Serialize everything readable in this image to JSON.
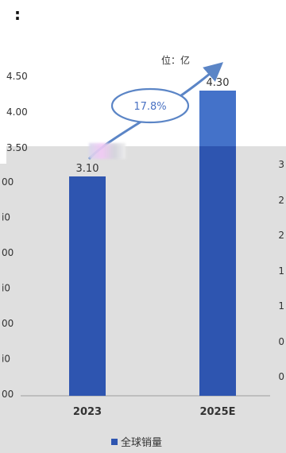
{
  "top_glyph": ":",
  "unit_label": "位：亿",
  "growth_label": "17.8%",
  "blurred_label": "",
  "colors": {
    "top_panel_bar": "#4472c9",
    "bottom_panel_bar": "#2e55b0",
    "arrow": "#5b85c6",
    "ellipse_stroke": "#5b85c6",
    "grey_panel": "#dfdfdf"
  },
  "chart_data": {
    "type": "bar",
    "categories": [
      "2023",
      "2025E"
    ],
    "series": [
      {
        "name": "全球销量",
        "values": [
          3.1,
          4.3
        ],
        "value_labels": [
          "3.10",
          "4.30"
        ]
      }
    ],
    "title": "",
    "xlabel": "",
    "ylabel": "",
    "ylim": [
      0,
      4.5
    ],
    "y_ticks_top_panel": [
      "4.50",
      "4.00",
      "3.50"
    ],
    "y_ticks_bottom_panel_partial": [
      "00",
      "i0",
      "00",
      "i0",
      "00",
      "i0",
      "00"
    ],
    "right_axis_partial_ticks": [
      "3",
      "2",
      "2",
      "1",
      "1",
      "0",
      "0"
    ],
    "legend": {
      "entries": [
        "全球销量"
      ],
      "position": "bottom"
    },
    "grid": false
  }
}
